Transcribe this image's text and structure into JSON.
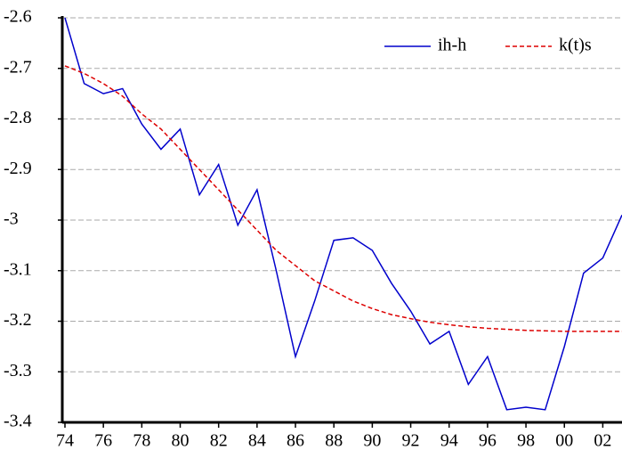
{
  "chart_data": {
    "type": "line",
    "x": [
      1974,
      1975,
      1976,
      1977,
      1978,
      1979,
      1980,
      1981,
      1982,
      1983,
      1984,
      1985,
      1986,
      1987,
      1988,
      1989,
      1990,
      1991,
      1992,
      1993,
      1994,
      1995,
      1996,
      1997,
      1998,
      1999,
      2000,
      2001,
      2002,
      2003
    ],
    "series": [
      {
        "name": "ih-h",
        "color": "#0000cc",
        "dash": false,
        "values": [
          -2.6,
          -2.73,
          -2.75,
          -2.74,
          -2.81,
          -2.86,
          -2.82,
          -2.95,
          -2.89,
          -3.01,
          -2.94,
          -3.1,
          -3.27,
          -3.16,
          -3.04,
          -3.035,
          -3.06,
          -3.125,
          -3.18,
          -3.245,
          -3.22,
          -3.325,
          -3.27,
          -3.375,
          -3.37,
          -3.375,
          -3.25,
          -3.105,
          -3.075,
          -2.99
        ]
      },
      {
        "name": "k(t)s",
        "color": "#dd0000",
        "dash": true,
        "values": [
          -2.695,
          -2.71,
          -2.73,
          -2.755,
          -2.79,
          -2.82,
          -2.86,
          -2.9,
          -2.94,
          -2.98,
          -3.02,
          -3.06,
          -3.09,
          -3.12,
          -3.14,
          -3.16,
          -3.175,
          -3.187,
          -3.195,
          -3.202,
          -3.207,
          -3.211,
          -3.214,
          -3.216,
          -3.218,
          -3.219,
          -3.22,
          -3.22,
          -3.22,
          -3.22
        ]
      }
    ],
    "xlim": [
      1974,
      2003
    ],
    "xticks": [
      {
        "value": 1974,
        "label": "74"
      },
      {
        "value": 1976,
        "label": "76"
      },
      {
        "value": 1978,
        "label": "78"
      },
      {
        "value": 1980,
        "label": "80"
      },
      {
        "value": 1982,
        "label": "82"
      },
      {
        "value": 1984,
        "label": "84"
      },
      {
        "value": 1986,
        "label": "86"
      },
      {
        "value": 1988,
        "label": "88"
      },
      {
        "value": 1990,
        "label": "90"
      },
      {
        "value": 1992,
        "label": "92"
      },
      {
        "value": 1994,
        "label": "94"
      },
      {
        "value": 1996,
        "label": "96"
      },
      {
        "value": 1998,
        "label": "98"
      },
      {
        "value": 2000,
        "label": "00"
      },
      {
        "value": 2002,
        "label": "02"
      }
    ],
    "ylim": [
      -3.4,
      -2.6
    ],
    "yticks": [
      -3.4,
      -3.3,
      -3.2,
      -3.1,
      -3.0,
      -2.9,
      -2.8,
      -2.7,
      -2.6
    ],
    "grid": true,
    "legend": "top-right"
  }
}
